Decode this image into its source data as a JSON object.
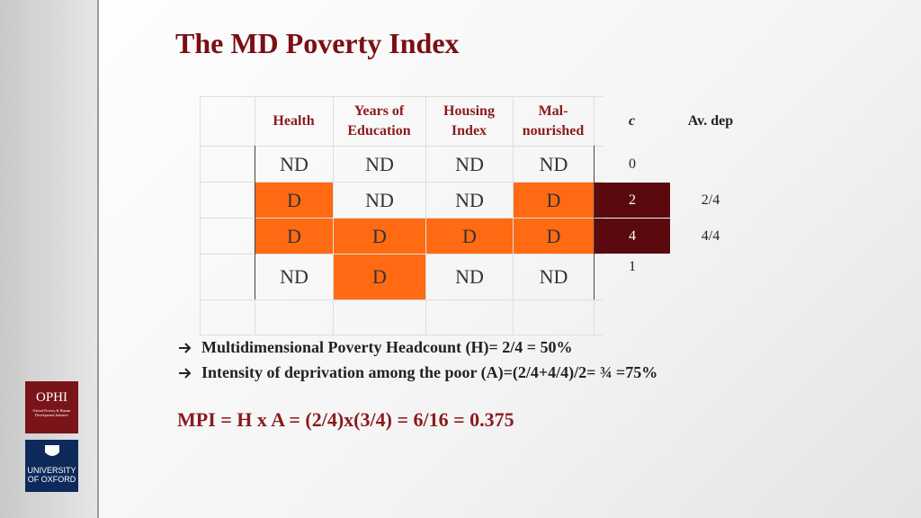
{
  "title": "The MD Poverty Index",
  "table": {
    "headers": [
      "Health",
      "Years of\nEducation",
      "Housing\nIndex",
      "Mal-\nnourished",
      "c",
      "Av. dep"
    ],
    "rows": [
      {
        "cells": [
          {
            "text": "ND"
          },
          {
            "text": "ND"
          },
          {
            "text": "ND"
          },
          {
            "text": "ND"
          }
        ],
        "c": 0
      },
      {
        "cells": [
          {
            "text": "D",
            "color": "#ff6a13"
          },
          {
            "text": "ND"
          },
          {
            "text": "ND"
          },
          {
            "text": "D",
            "color": "#ff6a13"
          }
        ],
        "c": 2,
        "c_color": "#5a0a0e",
        "av_dep": "2/4"
      },
      {
        "cells": [
          {
            "text": "D",
            "color": "#ff6a13"
          },
          {
            "text": "D",
            "color": "#ff6a13"
          },
          {
            "text": "D",
            "color": "#ff6a13"
          },
          {
            "text": "D",
            "color": "#ff6a13"
          }
        ],
        "c": 4,
        "c_color": "#5a0a0e",
        "av_dep": "4/4"
      },
      {
        "cells": [
          {
            "text": "ND"
          },
          {
            "text": "D",
            "color": "#ff6a13"
          },
          {
            "text": "ND"
          },
          {
            "text": "ND"
          }
        ],
        "c": 1
      }
    ]
  },
  "bullets": [
    "Multidimensional Poverty Headcount (H)=  2/4 = 50%",
    "Intensity of deprivation among the poor (A)=(2/4+4/4)/2= ¾ =75%"
  ],
  "formula": "MPI = H x A = (2/4)x(3/4) = 6/16 = 0.375",
  "logos": {
    "ophi": "OPHI",
    "ophi_sub": "Oxford Poverty & Human Development Initiative",
    "oxford": "UNIVERSITY OF OXFORD"
  }
}
